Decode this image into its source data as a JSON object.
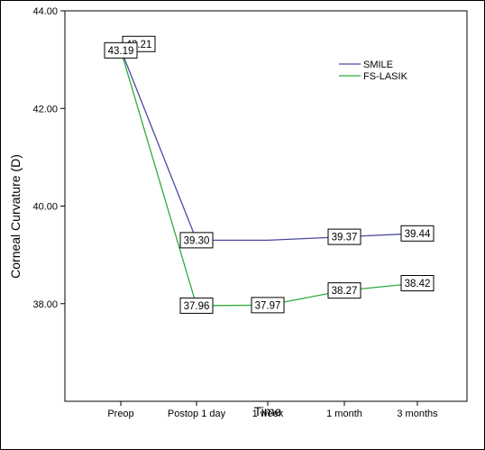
{
  "chart_data": {
    "type": "line",
    "xlabel": "Time",
    "ylabel": "Corneal Curvature (D)",
    "categories": [
      "Preop",
      "Postop 1 day",
      "1 week",
      "1 month",
      "3 months"
    ],
    "ylim": [
      36.0,
      44.0
    ],
    "yticks": [
      "38.00",
      "40.00",
      "42.00",
      "44.00"
    ],
    "grid": false,
    "legend_position": "top-right",
    "series": [
      {
        "name": "SMILE",
        "color": "#4a4a9e",
        "values": [
          43.21,
          39.3,
          39.3,
          39.37,
          39.44
        ],
        "labels": [
          "43.21",
          "39.30",
          "",
          "39.37",
          "39.44"
        ]
      },
      {
        "name": "FS-LASIK",
        "color": "#2eaa3c",
        "values": [
          43.19,
          37.96,
          37.97,
          38.27,
          38.42
        ],
        "labels": [
          "43.19",
          "37.96",
          "37.97",
          "38.27",
          "38.42"
        ]
      }
    ]
  }
}
